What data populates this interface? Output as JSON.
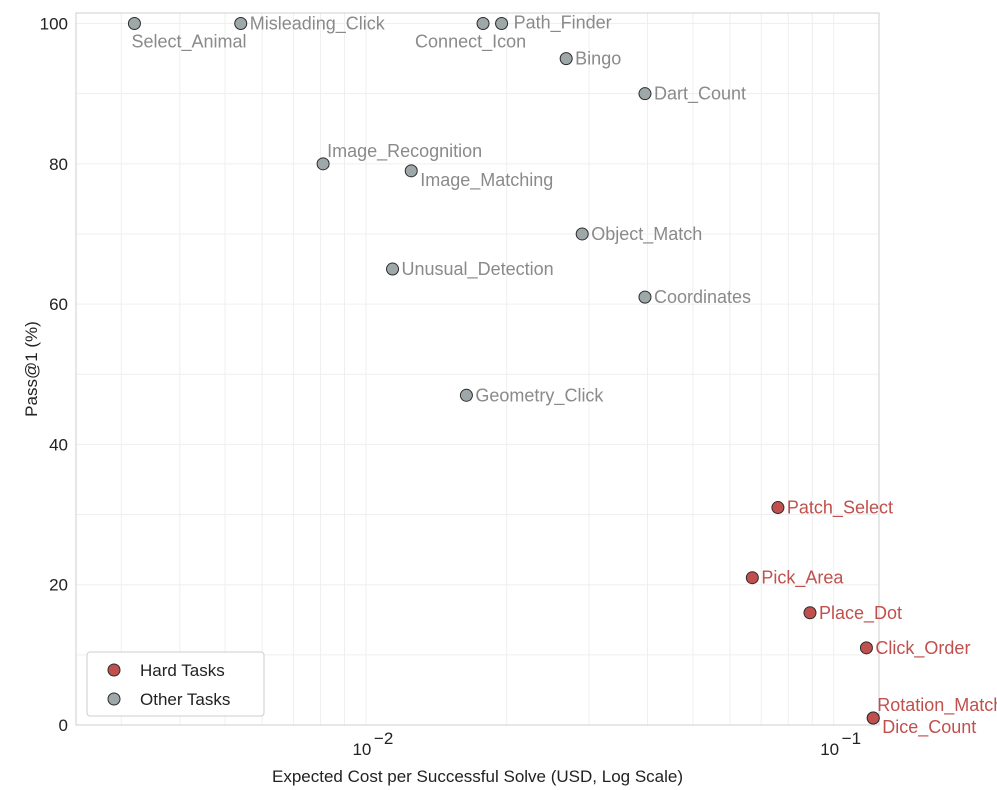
{
  "chart_data": {
    "type": "scatter",
    "title": "",
    "xlabel": "Expected Cost per Successful Solve (USD, Log Scale)",
    "ylabel": "Pass@1 (%)",
    "x_scale": "log",
    "xlim": [
      0.0024,
      0.125
    ],
    "ylim": [
      0,
      101.5
    ],
    "x_ticks": [
      {
        "value": 0.01,
        "base": "10",
        "exp": "−2"
      },
      {
        "value": 0.1,
        "base": "10",
        "exp": "−1"
      }
    ],
    "y_ticks": [
      0,
      20,
      40,
      60,
      80,
      100
    ],
    "grid": true,
    "legend_position": "bottom-left",
    "colors": {
      "hard": "#c0504d",
      "other": "#9ea8a8",
      "hard_text": "#c0504d",
      "other_text": "#8a8a8a"
    },
    "legend": [
      {
        "name": "Hard Tasks",
        "group": "hard"
      },
      {
        "name": "Other Tasks",
        "group": "other"
      }
    ],
    "points": [
      {
        "label": "Select_Animal",
        "x": 0.0032,
        "y": 100,
        "group": "other",
        "anchor": "below"
      },
      {
        "label": "Misleading_Click",
        "x": 0.0054,
        "y": 100,
        "group": "other",
        "anchor": "right"
      },
      {
        "label": "Connect_Icon",
        "x": 0.0178,
        "y": 100,
        "group": "other",
        "anchor": "below-left"
      },
      {
        "label": "Path_Finder",
        "x": 0.0195,
        "y": 100,
        "group": "other",
        "anchor": "right-wide"
      },
      {
        "label": "Bingo",
        "x": 0.0268,
        "y": 95,
        "group": "other",
        "anchor": "right"
      },
      {
        "label": "Dart_Count",
        "x": 0.0395,
        "y": 90,
        "group": "other",
        "anchor": "right"
      },
      {
        "label": "Image_Recognition",
        "x": 0.0081,
        "y": 80,
        "group": "other",
        "anchor": "above-right"
      },
      {
        "label": "Image_Matching",
        "x": 0.0125,
        "y": 79,
        "group": "other",
        "anchor": "below-right"
      },
      {
        "label": "Object_Match",
        "x": 0.029,
        "y": 70,
        "group": "other",
        "anchor": "right"
      },
      {
        "label": "Unusual_Detection",
        "x": 0.0114,
        "y": 65,
        "group": "other",
        "anchor": "right"
      },
      {
        "label": "Coordinates",
        "x": 0.0395,
        "y": 61,
        "group": "other",
        "anchor": "right"
      },
      {
        "label": "Geometry_Click",
        "x": 0.0164,
        "y": 47,
        "group": "other",
        "anchor": "right"
      },
      {
        "label": "Patch_Select",
        "x": 0.076,
        "y": 31,
        "group": "hard",
        "anchor": "right"
      },
      {
        "label": "Pick_Area",
        "x": 0.067,
        "y": 21,
        "group": "hard",
        "anchor": "right"
      },
      {
        "label": "Place_Dot",
        "x": 0.089,
        "y": 16,
        "group": "hard",
        "anchor": "right"
      },
      {
        "label": "Click_Order",
        "x": 0.1175,
        "y": 11,
        "group": "hard",
        "anchor": "right"
      },
      {
        "label": "Rotation_Match",
        "x": 0.1215,
        "y": 1,
        "group": "hard",
        "anchor": "above-right"
      },
      {
        "label": "Dice_Count",
        "x": 0.1215,
        "y": 1,
        "group": "hard",
        "anchor": "below-right"
      }
    ]
  }
}
